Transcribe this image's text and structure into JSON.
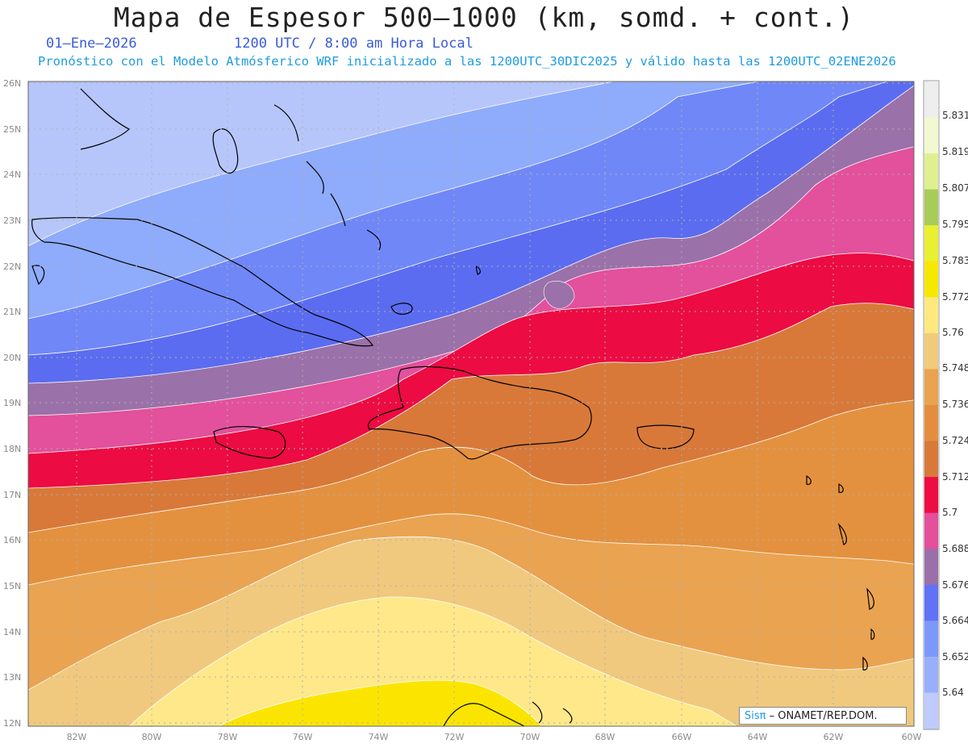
{
  "header": {
    "title": "Mapa de Espesor 500–1000 (km, somd. + cont.)",
    "date": "01–Ene–2026",
    "time": "1200 UTC / 8:00 am Hora Local",
    "forecast": "Pronóstico con el Modelo Atmósferico WRF inicializado a las 1200UTC_30DIC2025 y válido hasta las  1200UTC_02ENE2026"
  },
  "map": {
    "lat_labels": [
      "12N",
      "13N",
      "14N",
      "15N",
      "16N",
      "17N",
      "18N",
      "19N",
      "20N",
      "21N",
      "22N",
      "23N",
      "24N",
      "25N",
      "26N"
    ],
    "lon_labels": [
      "82W",
      "80W",
      "78W",
      "76W",
      "74W",
      "72W",
      "70W",
      "68W",
      "66W",
      "64W",
      "62W",
      "60W"
    ],
    "colors": [
      "#b6c6fb",
      "#8fabfb",
      "#7087f8",
      "#5b6cf0",
      "#9b71a9",
      "#e3509c",
      "#ec0b42",
      "#d87939",
      "#e4913f",
      "#eaa351",
      "#f0c97e",
      "#fee88a",
      "#fbe500"
    ]
  },
  "colorbar": {
    "labels": [
      "5.831",
      "5.819",
      "5.807",
      "5.795",
      "5.783",
      "5.772",
      "5.76",
      "5.748",
      "5.736",
      "5.724",
      "5.712",
      "5.7",
      "5.688",
      "5.676",
      "5.664",
      "5.652",
      "5.64"
    ],
    "colors": [
      "#eeeeee",
      "#f2f8d0",
      "#e0f090",
      "#a8cc58",
      "#e8f030",
      "#f6e800",
      "#fde97e",
      "#f2ca7c",
      "#eaa34f",
      "#e48d3e",
      "#d87939",
      "#ee0c44",
      "#e3509c",
      "#9a70aa",
      "#6072f5",
      "#7d98fb",
      "#9aaffc",
      "#bfcbfc"
    ]
  },
  "credit": {
    "brand": "Sisπ",
    "org": " – ONAMET/REP.DOM."
  }
}
